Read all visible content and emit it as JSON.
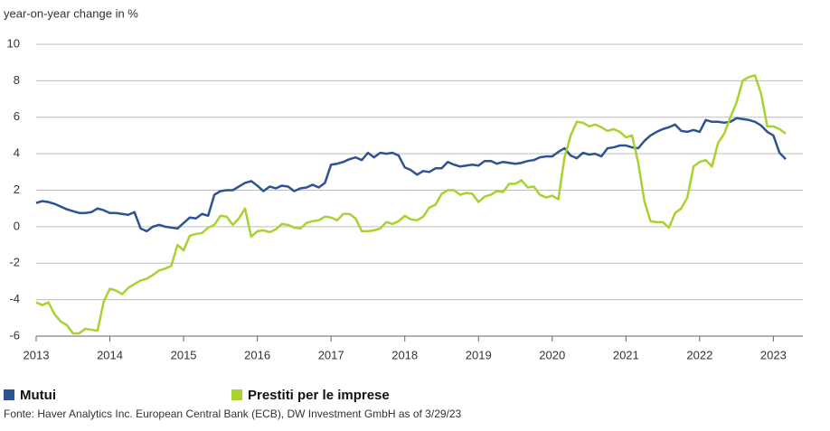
{
  "chart_data": {
    "type": "line",
    "y_label": "year-on-year change in %",
    "source": "Fonte: Haver Analytics Inc. European Central Bank (ECB), DW Investment GmbH as of 3/29/23",
    "x": [
      2013,
      2013.083,
      2013.167,
      2013.25,
      2013.333,
      2013.417,
      2013.5,
      2013.583,
      2013.667,
      2013.75,
      2013.833,
      2013.917,
      2014,
      2014.083,
      2014.167,
      2014.25,
      2014.333,
      2014.417,
      2014.5,
      2014.583,
      2014.667,
      2014.75,
      2014.833,
      2014.917,
      2015,
      2015.083,
      2015.167,
      2015.25,
      2015.333,
      2015.417,
      2015.5,
      2015.583,
      2015.667,
      2015.75,
      2015.833,
      2015.917,
      2016,
      2016.083,
      2016.167,
      2016.25,
      2016.333,
      2016.417,
      2016.5,
      2016.583,
      2016.667,
      2016.75,
      2016.833,
      2016.917,
      2017,
      2017.083,
      2017.167,
      2017.25,
      2017.333,
      2017.417,
      2017.5,
      2017.583,
      2017.667,
      2017.75,
      2017.833,
      2017.917,
      2018,
      2018.083,
      2018.167,
      2018.25,
      2018.333,
      2018.417,
      2018.5,
      2018.583,
      2018.667,
      2018.75,
      2018.833,
      2018.917,
      2019,
      2019.083,
      2019.167,
      2019.25,
      2019.333,
      2019.417,
      2019.5,
      2019.583,
      2019.667,
      2019.75,
      2019.833,
      2019.917,
      2020,
      2020.083,
      2020.167,
      2020.25,
      2020.333,
      2020.417,
      2020.5,
      2020.583,
      2020.667,
      2020.75,
      2020.833,
      2020.917,
      2021,
      2021.083,
      2021.167,
      2021.25,
      2021.333,
      2021.417,
      2021.5,
      2021.583,
      2021.667,
      2021.75,
      2021.833,
      2021.917,
      2022,
      2022.083,
      2022.167,
      2022.25,
      2022.333,
      2022.417,
      2022.5,
      2022.583,
      2022.667,
      2022.75,
      2022.833,
      2022.917,
      2023,
      2023.083,
      2023.167
    ],
    "series": [
      {
        "name": "Mutui",
        "color": "#2d5393",
        "values": [
          1.3,
          1.4,
          1.35,
          1.25,
          1.1,
          0.95,
          0.85,
          0.75,
          0.75,
          0.8,
          1.0,
          0.9,
          0.75,
          0.75,
          0.7,
          0.65,
          0.8,
          -0.1,
          -0.25,
          0.0,
          0.1,
          0.0,
          -0.05,
          -0.1,
          0.2,
          0.5,
          0.45,
          0.7,
          0.6,
          1.75,
          1.95,
          2.0,
          2.0,
          2.2,
          2.4,
          2.5,
          2.25,
          1.95,
          2.2,
          2.1,
          2.25,
          2.2,
          1.95,
          2.1,
          2.15,
          2.3,
          2.15,
          2.4,
          3.4,
          3.45,
          3.55,
          3.7,
          3.8,
          3.65,
          4.05,
          3.8,
          4.05,
          4.0,
          4.05,
          3.9,
          3.25,
          3.1,
          2.85,
          3.05,
          3.0,
          3.2,
          3.2,
          3.55,
          3.4,
          3.3,
          3.35,
          3.4,
          3.35,
          3.6,
          3.6,
          3.45,
          3.55,
          3.5,
          3.45,
          3.5,
          3.6,
          3.65,
          3.8,
          3.85,
          3.85,
          4.1,
          4.3,
          3.9,
          3.75,
          4.05,
          3.95,
          4.0,
          3.85,
          4.3,
          4.35,
          4.45,
          4.45,
          4.35,
          4.3,
          4.7,
          5.0,
          5.2,
          5.35,
          5.45,
          5.6,
          5.25,
          5.2,
          5.3,
          5.2,
          5.85,
          5.75,
          5.75,
          5.7,
          5.75,
          5.95,
          5.9,
          5.85,
          5.75,
          5.55,
          5.2,
          5.0,
          4.05,
          3.7
        ]
      },
      {
        "name": "Prestiti per le imprese",
        "color": "#a9d130",
        "values": [
          -4.15,
          -4.3,
          -4.15,
          -4.8,
          -5.2,
          -5.4,
          -5.85,
          -5.85,
          -5.6,
          -5.65,
          -5.7,
          -4.1,
          -3.4,
          -3.5,
          -3.7,
          -3.35,
          -3.15,
          -2.95,
          -2.85,
          -2.65,
          -2.4,
          -2.3,
          -2.15,
          -1.0,
          -1.3,
          -0.5,
          -0.4,
          -0.35,
          -0.05,
          0.1,
          0.6,
          0.55,
          0.1,
          0.45,
          1.0,
          -0.55,
          -0.25,
          -0.2,
          -0.3,
          -0.15,
          0.15,
          0.1,
          -0.05,
          -0.1,
          0.2,
          0.3,
          0.35,
          0.55,
          0.5,
          0.35,
          0.7,
          0.7,
          0.45,
          -0.25,
          -0.25,
          -0.2,
          -0.1,
          0.25,
          0.15,
          0.3,
          0.6,
          0.4,
          0.35,
          0.55,
          1.05,
          1.2,
          1.8,
          2.0,
          2.0,
          1.75,
          1.85,
          1.8,
          1.35,
          1.65,
          1.75,
          1.95,
          1.9,
          2.35,
          2.35,
          2.55,
          2.15,
          2.2,
          1.75,
          1.6,
          1.7,
          1.5,
          3.8,
          5.0,
          5.75,
          5.7,
          5.5,
          5.6,
          5.45,
          5.25,
          5.35,
          5.2,
          4.9,
          5.0,
          3.5,
          1.4,
          0.3,
          0.25,
          0.25,
          -0.05,
          0.75,
          1.0,
          1.6,
          3.3,
          3.55,
          3.65,
          3.3,
          4.6,
          5.1,
          6.0,
          6.8,
          8.0,
          8.2,
          8.3,
          7.3,
          5.5,
          5.5,
          5.35,
          5.1
        ]
      }
    ],
    "xlim": [
      2013,
      2023.4
    ],
    "xticks": [
      2013,
      2014,
      2015,
      2016,
      2017,
      2018,
      2019,
      2020,
      2021,
      2022,
      2023
    ],
    "ylim": [
      -6,
      10
    ],
    "yticks": [
      -6,
      -4,
      -2,
      0,
      2,
      4,
      6,
      8,
      10
    ],
    "grid": true
  }
}
